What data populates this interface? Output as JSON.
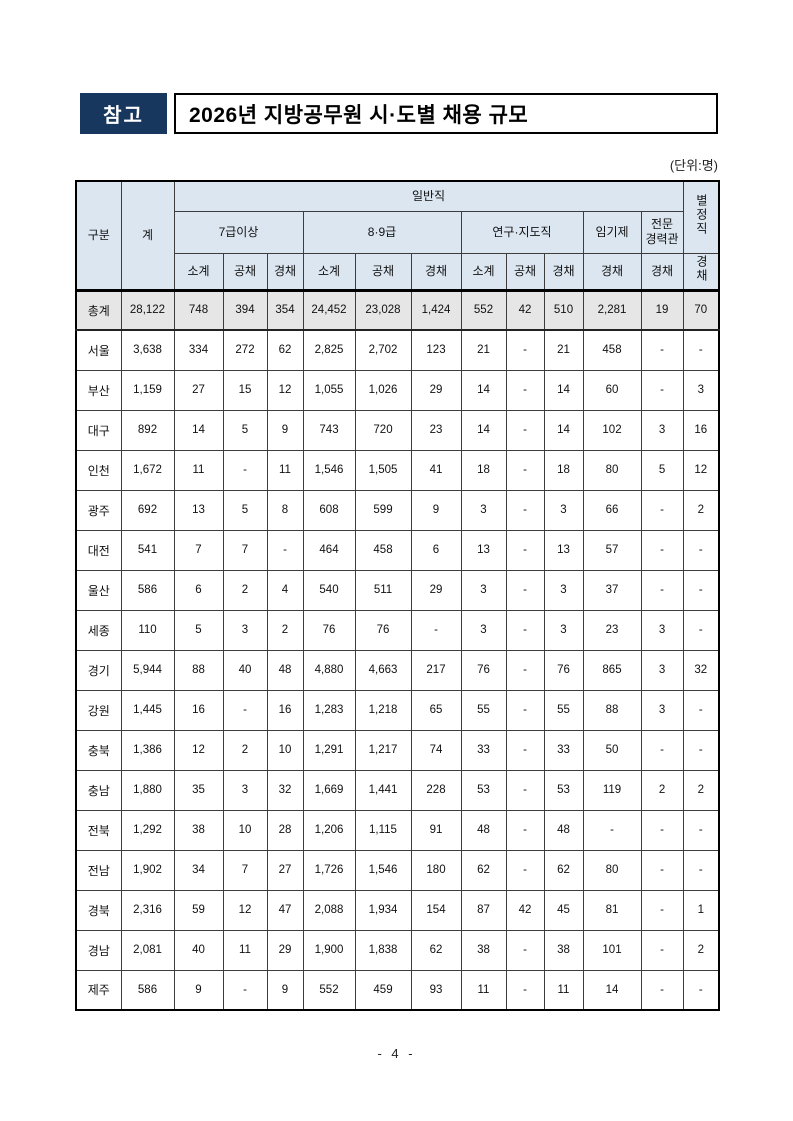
{
  "page": {
    "badge_label": "참고",
    "title": "2026년 지방공무원 시·도별 채용 규모",
    "unit_note": "(단위:명)",
    "footer_page_number": "- 4 -"
  },
  "colors": {
    "badge_bg": "#17375e",
    "header_cell_bg": "#dce6f1",
    "total_row_bg": "#e7e6e6",
    "border": "#000000"
  },
  "table": {
    "header": {
      "category": "구분",
      "total": "계",
      "general_group": "일반직",
      "special_group": "별정직",
      "groups": [
        {
          "label": "7급이상",
          "span": 3
        },
        {
          "label": "8·9급",
          "span": 3
        },
        {
          "label": "연구·지도직",
          "span": 3
        },
        {
          "label": "임기제",
          "span": 1
        },
        {
          "label": "전문\n경력관",
          "span": 1
        }
      ],
      "sub_cols": [
        "소계",
        "공채",
        "경채",
        "소계",
        "공채",
        "경채",
        "소계",
        "공채",
        "경채",
        "경채",
        "경채"
      ],
      "special_sub_col": "경채"
    },
    "rows": [
      {
        "region": "총계",
        "highlight": true,
        "values": [
          "28,122",
          "748",
          "394",
          "354",
          "24,452",
          "23,028",
          "1,424",
          "552",
          "42",
          "510",
          "2,281",
          "19",
          "70"
        ]
      },
      {
        "region": "서울",
        "values": [
          "3,638",
          "334",
          "272",
          "62",
          "2,825",
          "2,702",
          "123",
          "21",
          "-",
          "21",
          "458",
          "-",
          "-"
        ]
      },
      {
        "region": "부산",
        "values": [
          "1,159",
          "27",
          "15",
          "12",
          "1,055",
          "1,026",
          "29",
          "14",
          "-",
          "14",
          "60",
          "-",
          "3"
        ]
      },
      {
        "region": "대구",
        "values": [
          "892",
          "14",
          "5",
          "9",
          "743",
          "720",
          "23",
          "14",
          "-",
          "14",
          "102",
          "3",
          "16"
        ]
      },
      {
        "region": "인천",
        "values": [
          "1,672",
          "11",
          "-",
          "11",
          "1,546",
          "1,505",
          "41",
          "18",
          "-",
          "18",
          "80",
          "5",
          "12"
        ]
      },
      {
        "region": "광주",
        "values": [
          "692",
          "13",
          "5",
          "8",
          "608",
          "599",
          "9",
          "3",
          "-",
          "3",
          "66",
          "-",
          "2"
        ]
      },
      {
        "region": "대전",
        "values": [
          "541",
          "7",
          "7",
          "-",
          "464",
          "458",
          "6",
          "13",
          "-",
          "13",
          "57",
          "-",
          "-"
        ]
      },
      {
        "region": "울산",
        "values": [
          "586",
          "6",
          "2",
          "4",
          "540",
          "511",
          "29",
          "3",
          "-",
          "3",
          "37",
          "-",
          "-"
        ]
      },
      {
        "region": "세종",
        "values": [
          "110",
          "5",
          "3",
          "2",
          "76",
          "76",
          "-",
          "3",
          "-",
          "3",
          "23",
          "3",
          "-"
        ]
      },
      {
        "region": "경기",
        "values": [
          "5,944",
          "88",
          "40",
          "48",
          "4,880",
          "4,663",
          "217",
          "76",
          "-",
          "76",
          "865",
          "3",
          "32"
        ]
      },
      {
        "region": "강원",
        "values": [
          "1,445",
          "16",
          "-",
          "16",
          "1,283",
          "1,218",
          "65",
          "55",
          "-",
          "55",
          "88",
          "3",
          "-"
        ]
      },
      {
        "region": "충북",
        "values": [
          "1,386",
          "12",
          "2",
          "10",
          "1,291",
          "1,217",
          "74",
          "33",
          "-",
          "33",
          "50",
          "-",
          "-"
        ]
      },
      {
        "region": "충남",
        "values": [
          "1,880",
          "35",
          "3",
          "32",
          "1,669",
          "1,441",
          "228",
          "53",
          "-",
          "53",
          "119",
          "2",
          "2"
        ]
      },
      {
        "region": "전북",
        "values": [
          "1,292",
          "38",
          "10",
          "28",
          "1,206",
          "1,115",
          "91",
          "48",
          "-",
          "48",
          "-",
          "-",
          "-"
        ]
      },
      {
        "region": "전남",
        "values": [
          "1,902",
          "34",
          "7",
          "27",
          "1,726",
          "1,546",
          "180",
          "62",
          "-",
          "62",
          "80",
          "-",
          "-"
        ]
      },
      {
        "region": "경북",
        "values": [
          "2,316",
          "59",
          "12",
          "47",
          "2,088",
          "1,934",
          "154",
          "87",
          "42",
          "45",
          "81",
          "-",
          "1"
        ]
      },
      {
        "region": "경남",
        "values": [
          "2,081",
          "40",
          "11",
          "29",
          "1,900",
          "1,838",
          "62",
          "38",
          "-",
          "38",
          "101",
          "-",
          "2"
        ]
      },
      {
        "region": "제주",
        "values": [
          "586",
          "9",
          "-",
          "9",
          "552",
          "459",
          "93",
          "11",
          "-",
          "11",
          "14",
          "-",
          "-"
        ]
      }
    ]
  }
}
